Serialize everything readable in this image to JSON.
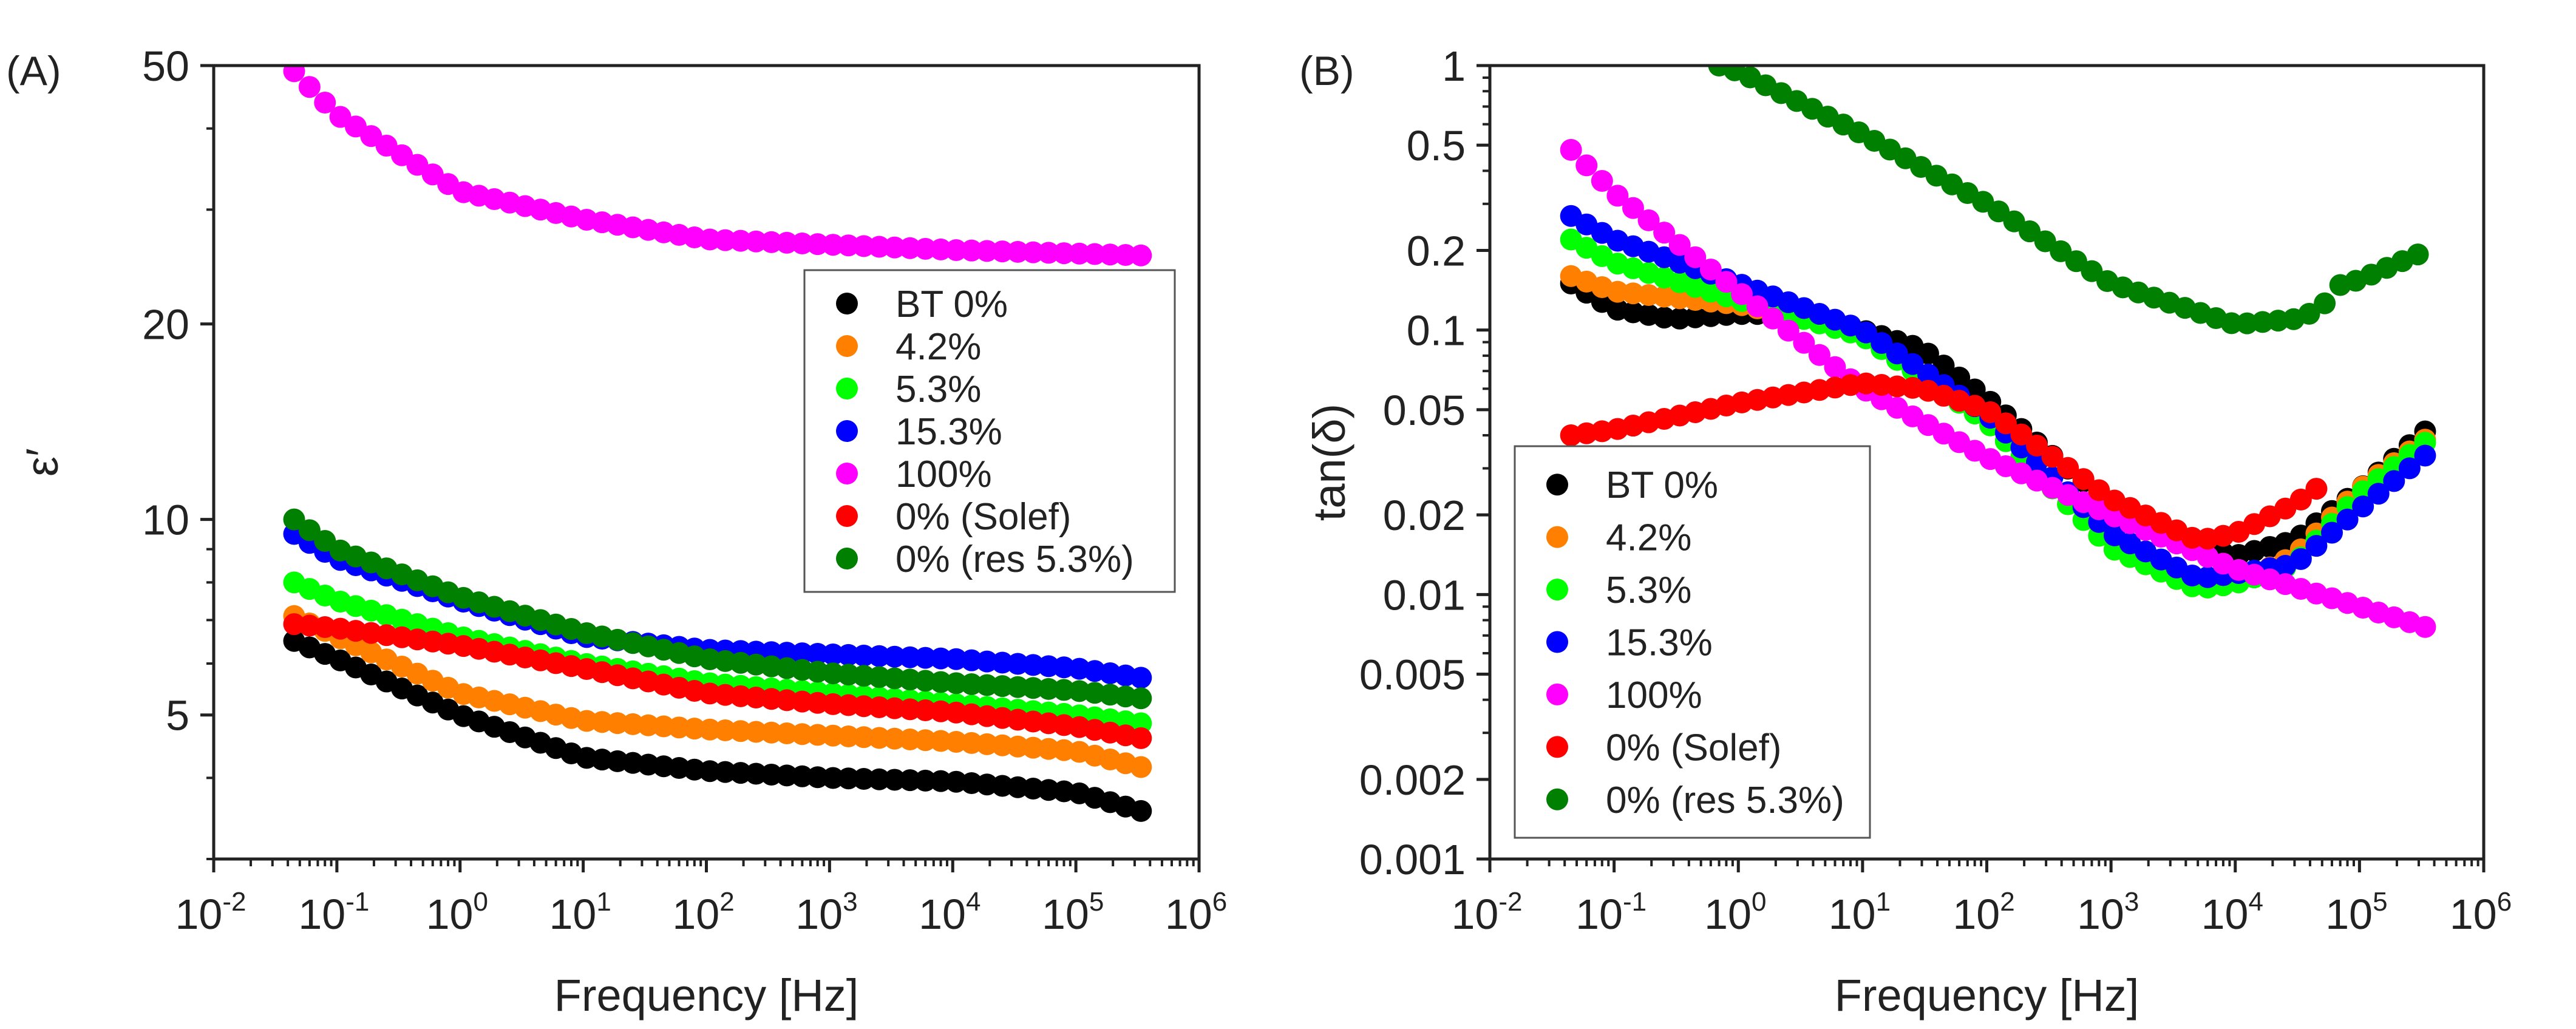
{
  "chart_data": [
    {
      "type": "scatter",
      "panel_label": "(A)",
      "xlabel": "Frequency [Hz]",
      "ylabel": "ε′",
      "xscale": "log",
      "yscale": "log",
      "xlim": [
        0.01,
        1000000
      ],
      "ylim": [
        3,
        50
      ],
      "xticks": [
        {
          "base": "10",
          "exp": "-2"
        },
        {
          "base": "10",
          "exp": "-1"
        },
        {
          "base": "10",
          "exp": "0"
        },
        {
          "base": "10",
          "exp": "1"
        },
        {
          "base": "10",
          "exp": "2"
        },
        {
          "base": "10",
          "exp": "3"
        },
        {
          "base": "10",
          "exp": "4"
        },
        {
          "base": "10",
          "exp": "5"
        },
        {
          "base": "10",
          "exp": "6"
        }
      ],
      "yticks": [
        "50",
        "20",
        "10",
        "5"
      ],
      "ytick_values": [
        50,
        20,
        10,
        5
      ],
      "legend_placement": "center-right",
      "series": [
        {
          "name": "BT 0%",
          "color": "#000000",
          "anchors": [
            [
              0.045,
              6.5
            ],
            [
              0.1,
              6.1
            ],
            [
              1,
              5.0
            ],
            [
              10,
              4.3
            ],
            [
              100,
              4.1
            ],
            [
              1000,
              4.0
            ],
            [
              10000,
              3.95
            ],
            [
              100000,
              3.8
            ],
            [
              350000,
              3.55
            ]
          ]
        },
        {
          "name": "4.2%",
          "color": "#ff8000",
          "anchors": [
            [
              0.045,
              7.1
            ],
            [
              0.1,
              6.6
            ],
            [
              1,
              5.4
            ],
            [
              10,
              4.9
            ],
            [
              100,
              4.75
            ],
            [
              1000,
              4.65
            ],
            [
              10000,
              4.55
            ],
            [
              100000,
              4.4
            ],
            [
              350000,
              4.15
            ]
          ]
        },
        {
          "name": "5.3%",
          "color": "#00ff00",
          "anchors": [
            [
              0.045,
              8.0
            ],
            [
              0.1,
              7.5
            ],
            [
              1,
              6.6
            ],
            [
              10,
              6.0
            ],
            [
              100,
              5.6
            ],
            [
              1000,
              5.4
            ],
            [
              10000,
              5.2
            ],
            [
              100000,
              5.0
            ],
            [
              350000,
              4.85
            ]
          ]
        },
        {
          "name": "15.3%",
          "color": "#0000ff",
          "anchors": [
            [
              0.045,
              9.5
            ],
            [
              0.1,
              8.7
            ],
            [
              1,
              7.5
            ],
            [
              10,
              6.6
            ],
            [
              100,
              6.3
            ],
            [
              1000,
              6.2
            ],
            [
              10000,
              6.1
            ],
            [
              100000,
              5.9
            ],
            [
              350000,
              5.7
            ]
          ]
        },
        {
          "name": "100%",
          "color": "#ff00ff",
          "anchors": [
            [
              0.045,
              49
            ],
            [
              0.1,
              42
            ],
            [
              1,
              32
            ],
            [
              10,
              29
            ],
            [
              100,
              27
            ],
            [
              1000,
              26.5
            ],
            [
              10000,
              26
            ],
            [
              350000,
              25.5
            ]
          ]
        },
        {
          "name": "0% (Solef)",
          "color": "#ff0000",
          "anchors": [
            [
              0.045,
              6.9
            ],
            [
              0.1,
              6.8
            ],
            [
              1,
              6.4
            ],
            [
              10,
              5.9
            ],
            [
              100,
              5.4
            ],
            [
              1000,
              5.2
            ],
            [
              10000,
              5.05
            ],
            [
              100000,
              4.8
            ],
            [
              350000,
              4.6
            ]
          ]
        },
        {
          "name": "0% (res 5.3%)",
          "color": "#008000",
          "anchors": [
            [
              0.045,
              10
            ],
            [
              0.1,
              9.0
            ],
            [
              1,
              7.6
            ],
            [
              10,
              6.7
            ],
            [
              100,
              6.1
            ],
            [
              1000,
              5.8
            ],
            [
              10000,
              5.6
            ],
            [
              100000,
              5.45
            ],
            [
              350000,
              5.3
            ]
          ]
        }
      ]
    },
    {
      "type": "scatter",
      "panel_label": "(B)",
      "xlabel": "Frequency [Hz]",
      "ylabel": "tan(δ)",
      "xscale": "log",
      "yscale": "log",
      "xlim": [
        0.01,
        1000000
      ],
      "ylim": [
        0.001,
        1
      ],
      "xticks": [
        {
          "base": "10",
          "exp": "-2"
        },
        {
          "base": "10",
          "exp": "-1"
        },
        {
          "base": "10",
          "exp": "0"
        },
        {
          "base": "10",
          "exp": "1"
        },
        {
          "base": "10",
          "exp": "2"
        },
        {
          "base": "10",
          "exp": "3"
        },
        {
          "base": "10",
          "exp": "4"
        },
        {
          "base": "10",
          "exp": "5"
        },
        {
          "base": "10",
          "exp": "6"
        }
      ],
      "yticks": [
        "1",
        "0.5",
        "0.2",
        "0.1",
        "0.05",
        "0.02",
        "0.01",
        "0.005",
        "0.002",
        "0.001"
      ],
      "ytick_values": [
        1,
        0.5,
        0.2,
        0.1,
        0.05,
        0.02,
        0.01,
        0.005,
        0.002,
        0.001
      ],
      "legend_placement": "bottom-left",
      "series": [
        {
          "name": "BT 0%",
          "color": "#000000",
          "anchors": [
            [
              0.045,
              0.15
            ],
            [
              0.1,
              0.12
            ],
            [
              0.3,
              0.11
            ],
            [
              1,
              0.115
            ],
            [
              3,
              0.115
            ],
            [
              10,
              0.1
            ],
            [
              30,
              0.085
            ],
            [
              100,
              0.055
            ],
            [
              300,
              0.035
            ],
            [
              1000,
              0.022
            ],
            [
              3000,
              0.016
            ],
            [
              10000,
              0.014
            ],
            [
              30000,
              0.016
            ],
            [
              100000,
              0.025
            ],
            [
              350000,
              0.042
            ]
          ]
        },
        {
          "name": "4.2%",
          "color": "#ff8000",
          "anchors": [
            [
              0.045,
              0.16
            ],
            [
              0.1,
              0.14
            ],
            [
              1,
              0.125
            ],
            [
              10,
              0.1
            ],
            [
              100,
              0.045
            ],
            [
              1000,
              0.015
            ],
            [
              5000,
              0.0105
            ],
            [
              10000,
              0.011
            ],
            [
              30000,
              0.014
            ],
            [
              100000,
              0.025
            ],
            [
              350000,
              0.039
            ]
          ]
        },
        {
          "name": "5.3%",
          "color": "#00ff00",
          "anchors": [
            [
              0.045,
              0.22
            ],
            [
              0.1,
              0.18
            ],
            [
              1,
              0.13
            ],
            [
              10,
              0.095
            ],
            [
              100,
              0.045
            ],
            [
              1000,
              0.015
            ],
            [
              5000,
              0.0105
            ],
            [
              10000,
              0.011
            ],
            [
              30000,
              0.013
            ],
            [
              100000,
              0.024
            ],
            [
              350000,
              0.038
            ]
          ]
        },
        {
          "name": "15.3%",
          "color": "#0000ff",
          "anchors": [
            [
              0.045,
              0.27
            ],
            [
              0.1,
              0.22
            ],
            [
              1,
              0.15
            ],
            [
              10,
              0.1
            ],
            [
              100,
              0.048
            ],
            [
              1000,
              0.017
            ],
            [
              5000,
              0.0115
            ],
            [
              10000,
              0.012
            ],
            [
              30000,
              0.013
            ],
            [
              100000,
              0.021
            ],
            [
              350000,
              0.034
            ]
          ]
        },
        {
          "name": "100%",
          "color": "#ff00ff",
          "anchors": [
            [
              0.045,
              0.48
            ],
            [
              0.1,
              0.33
            ],
            [
              1,
              0.14
            ],
            [
              10,
              0.06
            ],
            [
              100,
              0.033
            ],
            [
              1000,
              0.02
            ],
            [
              10000,
              0.0125
            ],
            [
              100000,
              0.009
            ],
            [
              350000,
              0.0075
            ]
          ]
        },
        {
          "name": "0% (Solef)",
          "color": "#ff0000",
          "anchors": [
            [
              0.045,
              0.04
            ],
            [
              0.1,
              0.042
            ],
            [
              1,
              0.053
            ],
            [
              10,
              0.063
            ],
            [
              30,
              0.06
            ],
            [
              100,
              0.05
            ],
            [
              1000,
              0.023
            ],
            [
              5000,
              0.016
            ],
            [
              10000,
              0.017
            ],
            [
              30000,
              0.022
            ],
            [
              50000,
              0.026
            ]
          ]
        },
        {
          "name": "0% (res 5.3%)",
          "color": "#008000",
          "anchors": [
            [
              0.7,
              1.0
            ],
            [
              1,
              0.95
            ],
            [
              10,
              0.55
            ],
            [
              100,
              0.3
            ],
            [
              1000,
              0.15
            ],
            [
              10000,
              0.105
            ],
            [
              30000,
              0.11
            ],
            [
              50000,
              0.12
            ],
            [
              60000,
              0.145
            ],
            [
              100000,
              0.155
            ],
            [
              350000,
              0.2
            ]
          ]
        }
      ]
    }
  ]
}
